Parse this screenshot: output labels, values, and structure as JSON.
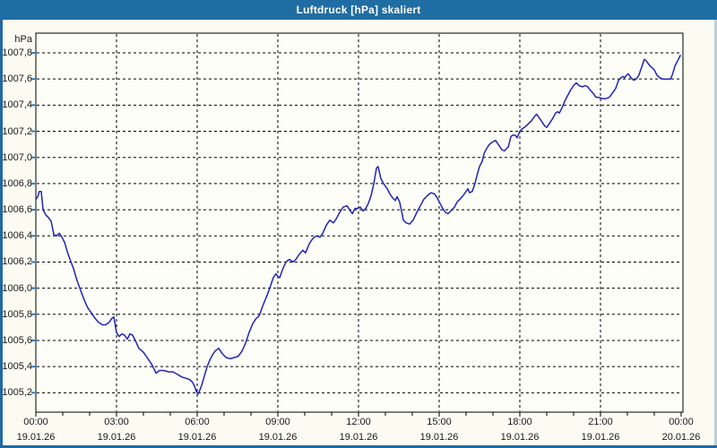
{
  "window": {
    "title": "Luftdruck [hPa] skaliert",
    "titlebar_color": "#1f6da3",
    "frame_color": "#2268a2",
    "frame_right_color": "#b8cfdf",
    "content_bg": "#fbfbf2"
  },
  "chart_data": {
    "type": "line",
    "title": "Luftdruck [hPa] skaliert",
    "unit_label": "hPa",
    "series_name": "Luftdruck",
    "line_color": "#2323b8",
    "plot_bg": "#fdfef7",
    "grid_color": "#000000",
    "y_axis_tick_color": "#2f7cc0",
    "label_color": "#1a1a1a",
    "grid": true,
    "legend_position": "none",
    "xlabel": "",
    "ylabel": "hPa",
    "x_range_hours": [
      0,
      24
    ],
    "ylim": [
      1005.05,
      1007.95
    ],
    "y_ticks": [
      {
        "value": 1005.2,
        "label": "1005,2"
      },
      {
        "value": 1005.4,
        "label": "1005,4"
      },
      {
        "value": 1005.6,
        "label": "1005,6"
      },
      {
        "value": 1005.8,
        "label": "1005,8"
      },
      {
        "value": 1006.0,
        "label": "1006,0"
      },
      {
        "value": 1006.2,
        "label": "1006,2"
      },
      {
        "value": 1006.4,
        "label": "1006,4"
      },
      {
        "value": 1006.6,
        "label": "1006,6"
      },
      {
        "value": 1006.8,
        "label": "1006,8"
      },
      {
        "value": 1007.0,
        "label": "1007,0"
      },
      {
        "value": 1007.2,
        "label": "1007,2"
      },
      {
        "value": 1007.4,
        "label": "1007,4"
      },
      {
        "value": 1007.6,
        "label": "1007,6"
      },
      {
        "value": 1007.8,
        "label": "1007,8"
      }
    ],
    "x_ticks": [
      {
        "hour": 0,
        "time": "00:00",
        "date": "19.01.26"
      },
      {
        "hour": 3,
        "time": "03:00",
        "date": "19.01.26"
      },
      {
        "hour": 6,
        "time": "06:00",
        "date": "19.01.26"
      },
      {
        "hour": 9,
        "time": "09:00",
        "date": "19.01.26"
      },
      {
        "hour": 12,
        "time": "12:00",
        "date": "19.01.26"
      },
      {
        "hour": 15,
        "time": "15:00",
        "date": "19.01.26"
      },
      {
        "hour": 18,
        "time": "18:00",
        "date": "19.01.26"
      },
      {
        "hour": 21,
        "time": "21:00",
        "date": "19.01.26"
      },
      {
        "hour": 24,
        "time": "00:00",
        "date": "20.01.26"
      }
    ],
    "minor_tick_every_hours": 1,
    "points": [
      [
        0.0,
        1006.68
      ],
      [
        0.07,
        1006.7
      ],
      [
        0.13,
        1006.74
      ],
      [
        0.2,
        1006.74
      ],
      [
        0.27,
        1006.6
      ],
      [
        0.37,
        1006.56
      ],
      [
        0.47,
        1006.54
      ],
      [
        0.57,
        1006.51
      ],
      [
        0.67,
        1006.41
      ],
      [
        0.77,
        1006.4
      ],
      [
        0.87,
        1006.42
      ],
      [
        0.97,
        1006.39
      ],
      [
        1.07,
        1006.35
      ],
      [
        1.17,
        1006.28
      ],
      [
        1.27,
        1006.22
      ],
      [
        1.4,
        1006.15
      ],
      [
        1.53,
        1006.06
      ],
      [
        1.67,
        1005.98
      ],
      [
        1.8,
        1005.91
      ],
      [
        1.93,
        1005.85
      ],
      [
        2.07,
        1005.81
      ],
      [
        2.2,
        1005.77
      ],
      [
        2.33,
        1005.74
      ],
      [
        2.47,
        1005.72
      ],
      [
        2.6,
        1005.72
      ],
      [
        2.73,
        1005.74
      ],
      [
        2.83,
        1005.77
      ],
      [
        2.9,
        1005.78
      ],
      [
        3.0,
        1005.66
      ],
      [
        3.1,
        1005.63
      ],
      [
        3.2,
        1005.65
      ],
      [
        3.3,
        1005.64
      ],
      [
        3.4,
        1005.61
      ],
      [
        3.5,
        1005.65
      ],
      [
        3.6,
        1005.64
      ],
      [
        3.7,
        1005.6
      ],
      [
        3.83,
        1005.54
      ],
      [
        4.0,
        1005.51
      ],
      [
        4.17,
        1005.46
      ],
      [
        4.33,
        1005.41
      ],
      [
        4.47,
        1005.35
      ],
      [
        4.6,
        1005.37
      ],
      [
        4.77,
        1005.37
      ],
      [
        4.93,
        1005.36
      ],
      [
        5.1,
        1005.36
      ],
      [
        5.27,
        1005.34
      ],
      [
        5.43,
        1005.32
      ],
      [
        5.6,
        1005.31
      ],
      [
        5.73,
        1005.3
      ],
      [
        5.83,
        1005.28
      ],
      [
        5.9,
        1005.25
      ],
      [
        5.97,
        1005.21
      ],
      [
        6.03,
        1005.19
      ],
      [
        6.1,
        1005.22
      ],
      [
        6.17,
        1005.26
      ],
      [
        6.27,
        1005.33
      ],
      [
        6.37,
        1005.4
      ],
      [
        6.47,
        1005.45
      ],
      [
        6.57,
        1005.49
      ],
      [
        6.67,
        1005.52
      ],
      [
        6.8,
        1005.54
      ],
      [
        6.93,
        1005.5
      ],
      [
        7.07,
        1005.47
      ],
      [
        7.23,
        1005.46
      ],
      [
        7.4,
        1005.47
      ],
      [
        7.53,
        1005.48
      ],
      [
        7.67,
        1005.52
      ],
      [
        7.8,
        1005.58
      ],
      [
        7.93,
        1005.66
      ],
      [
        8.07,
        1005.73
      ],
      [
        8.2,
        1005.77
      ],
      [
        8.27,
        1005.78
      ],
      [
        8.33,
        1005.8
      ],
      [
        8.43,
        1005.86
      ],
      [
        8.57,
        1005.93
      ],
      [
        8.7,
        1006.0
      ],
      [
        8.83,
        1006.08
      ],
      [
        8.93,
        1006.11
      ],
      [
        9.0,
        1006.09
      ],
      [
        9.07,
        1006.08
      ],
      [
        9.17,
        1006.14
      ],
      [
        9.3,
        1006.2
      ],
      [
        9.43,
        1006.22
      ],
      [
        9.57,
        1006.2
      ],
      [
        9.67,
        1006.22
      ],
      [
        9.8,
        1006.26
      ],
      [
        9.93,
        1006.29
      ],
      [
        10.03,
        1006.27
      ],
      [
        10.17,
        1006.34
      ],
      [
        10.3,
        1006.38
      ],
      [
        10.43,
        1006.4
      ],
      [
        10.57,
        1006.39
      ],
      [
        10.67,
        1006.42
      ],
      [
        10.8,
        1006.48
      ],
      [
        10.93,
        1006.52
      ],
      [
        11.07,
        1006.5
      ],
      [
        11.17,
        1006.53
      ],
      [
        11.3,
        1006.58
      ],
      [
        11.43,
        1006.62
      ],
      [
        11.57,
        1006.63
      ],
      [
        11.67,
        1006.6
      ],
      [
        11.77,
        1006.57
      ],
      [
        11.87,
        1006.61
      ],
      [
        11.97,
        1006.61
      ],
      [
        12.07,
        1006.62
      ],
      [
        12.17,
        1006.59
      ],
      [
        12.27,
        1006.61
      ],
      [
        12.37,
        1006.65
      ],
      [
        12.47,
        1006.71
      ],
      [
        12.57,
        1006.8
      ],
      [
        12.67,
        1006.92
      ],
      [
        12.73,
        1006.93
      ],
      [
        12.83,
        1006.84
      ],
      [
        12.93,
        1006.8
      ],
      [
        13.07,
        1006.76
      ],
      [
        13.17,
        1006.72
      ],
      [
        13.27,
        1006.69
      ],
      [
        13.37,
        1006.67
      ],
      [
        13.43,
        1006.7
      ],
      [
        13.53,
        1006.66
      ],
      [
        13.6,
        1006.59
      ],
      [
        13.67,
        1006.52
      ],
      [
        13.77,
        1006.5
      ],
      [
        13.9,
        1006.49
      ],
      [
        14.03,
        1006.52
      ],
      [
        14.17,
        1006.58
      ],
      [
        14.3,
        1006.63
      ],
      [
        14.43,
        1006.68
      ],
      [
        14.57,
        1006.71
      ],
      [
        14.7,
        1006.73
      ],
      [
        14.83,
        1006.72
      ],
      [
        14.93,
        1006.69
      ],
      [
        15.03,
        1006.65
      ],
      [
        15.13,
        1006.61
      ],
      [
        15.23,
        1006.58
      ],
      [
        15.33,
        1006.57
      ],
      [
        15.43,
        1006.59
      ],
      [
        15.57,
        1006.62
      ],
      [
        15.67,
        1006.66
      ],
      [
        15.77,
        1006.68
      ],
      [
        15.9,
        1006.71
      ],
      [
        16.0,
        1006.74
      ],
      [
        16.07,
        1006.76
      ],
      [
        16.13,
        1006.73
      ],
      [
        16.23,
        1006.74
      ],
      [
        16.33,
        1006.8
      ],
      [
        16.43,
        1006.88
      ],
      [
        16.5,
        1006.93
      ],
      [
        16.6,
        1006.97
      ],
      [
        16.67,
        1007.03
      ],
      [
        16.77,
        1007.07
      ],
      [
        16.87,
        1007.1
      ],
      [
        17.0,
        1007.12
      ],
      [
        17.1,
        1007.13
      ],
      [
        17.23,
        1007.09
      ],
      [
        17.33,
        1007.06
      ],
      [
        17.43,
        1007.05
      ],
      [
        17.57,
        1007.08
      ],
      [
        17.67,
        1007.16
      ],
      [
        17.73,
        1007.17
      ],
      [
        17.83,
        1007.17
      ],
      [
        17.9,
        1007.15
      ],
      [
        18.0,
        1007.2
      ],
      [
        18.1,
        1007.22
      ],
      [
        18.23,
        1007.24
      ],
      [
        18.33,
        1007.26
      ],
      [
        18.43,
        1007.28
      ],
      [
        18.57,
        1007.32
      ],
      [
        18.63,
        1007.33
      ],
      [
        18.73,
        1007.3
      ],
      [
        18.83,
        1007.27
      ],
      [
        18.93,
        1007.24
      ],
      [
        19.0,
        1007.23
      ],
      [
        19.1,
        1007.26
      ],
      [
        19.23,
        1007.3
      ],
      [
        19.33,
        1007.34
      ],
      [
        19.4,
        1007.35
      ],
      [
        19.47,
        1007.34
      ],
      [
        19.57,
        1007.38
      ],
      [
        19.67,
        1007.43
      ],
      [
        19.77,
        1007.47
      ],
      [
        19.9,
        1007.52
      ],
      [
        20.0,
        1007.55
      ],
      [
        20.1,
        1007.57
      ],
      [
        20.2,
        1007.55
      ],
      [
        20.33,
        1007.54
      ],
      [
        20.43,
        1007.55
      ],
      [
        20.53,
        1007.54
      ],
      [
        20.6,
        1007.52
      ],
      [
        20.73,
        1007.49
      ],
      [
        20.83,
        1007.46
      ],
      [
        20.93,
        1007.46
      ],
      [
        21.07,
        1007.45
      ],
      [
        21.2,
        1007.45
      ],
      [
        21.33,
        1007.46
      ],
      [
        21.47,
        1007.5
      ],
      [
        21.57,
        1007.53
      ],
      [
        21.67,
        1007.59
      ],
      [
        21.77,
        1007.61
      ],
      [
        21.83,
        1007.62
      ],
      [
        21.9,
        1007.61
      ],
      [
        21.97,
        1007.63
      ],
      [
        22.03,
        1007.64
      ],
      [
        22.13,
        1007.61
      ],
      [
        22.23,
        1007.59
      ],
      [
        22.33,
        1007.6
      ],
      [
        22.43,
        1007.63
      ],
      [
        22.53,
        1007.69
      ],
      [
        22.63,
        1007.75
      ],
      [
        22.7,
        1007.74
      ],
      [
        22.8,
        1007.71
      ],
      [
        22.9,
        1007.69
      ],
      [
        23.0,
        1007.67
      ],
      [
        23.1,
        1007.63
      ],
      [
        23.2,
        1007.61
      ],
      [
        23.33,
        1007.6
      ],
      [
        23.47,
        1007.6
      ],
      [
        23.6,
        1007.6
      ],
      [
        23.67,
        1007.63
      ],
      [
        23.77,
        1007.7
      ],
      [
        23.87,
        1007.74
      ],
      [
        23.97,
        1007.78
      ]
    ]
  }
}
